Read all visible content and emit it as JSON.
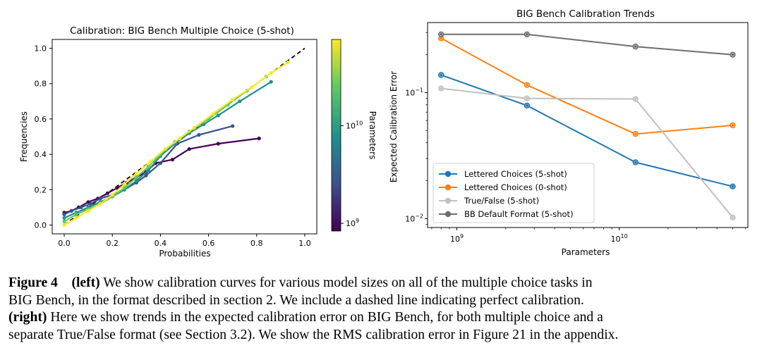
{
  "left_chart": {
    "title": "Calibration: BIG Bench Multiple Choice (5-shot)",
    "xlabel": "Probabilities",
    "ylabel": "Frequencies",
    "x_ticks": [
      "0.0",
      "0.2",
      "0.4",
      "0.6",
      "0.8",
      "1.0"
    ],
    "y_ticks": [
      "0.0",
      "0.2",
      "0.4",
      "0.6",
      "0.8",
      "1.0"
    ],
    "colorbar": {
      "label": "Parameters",
      "ticks": [
        {
          "base": "10",
          "exp": "9",
          "frac": 0.04
        },
        {
          "base": "10",
          "exp": "10",
          "frac": 0.55
        }
      ],
      "colors": [
        "#440154",
        "#3b528b",
        "#21908c",
        "#5dc963",
        "#fde725"
      ]
    }
  },
  "right_chart": {
    "title": "BIG Bench Calibration Trends",
    "xlabel": "Parameters",
    "ylabel": "Expected Calibration Error",
    "x_ticks": [
      {
        "base": "10",
        "exp": "9",
        "value": 1000000000
      },
      {
        "base": "10",
        "exp": "10",
        "value": 10000000000
      }
    ],
    "y_ticks": [
      {
        "base": "10",
        "exp": "−2",
        "value": 0.01
      },
      {
        "base": "10",
        "exp": "−1",
        "value": 0.1
      }
    ]
  },
  "chart_data": [
    {
      "type": "line",
      "title": "Calibration: BIG Bench Multiple Choice (5-shot)",
      "xlabel": "Probabilities",
      "ylabel": "Frequencies",
      "xlim": [
        -0.05,
        1.05
      ],
      "ylim": [
        -0.05,
        1.05
      ],
      "reference_line": {
        "style": "dashed",
        "color": "#000000",
        "x": [
          0.0,
          1.0
        ],
        "y": [
          0.0,
          1.0
        ]
      },
      "series": [
        {
          "color": "#440154",
          "x": [
            0.0,
            0.03,
            0.06,
            0.1,
            0.14,
            0.18,
            0.22,
            0.26,
            0.3,
            0.34,
            0.38,
            0.45,
            0.52,
            0.64,
            0.81
          ],
          "y": [
            0.07,
            0.08,
            0.1,
            0.13,
            0.15,
            0.18,
            0.21,
            0.24,
            0.27,
            0.3,
            0.35,
            0.37,
            0.43,
            0.46,
            0.49
          ]
        },
        {
          "color": "#3b528b",
          "x": [
            0.0,
            0.03,
            0.07,
            0.11,
            0.15,
            0.2,
            0.25,
            0.3,
            0.34,
            0.4,
            0.47,
            0.56,
            0.7
          ],
          "y": [
            0.06,
            0.08,
            0.1,
            0.12,
            0.15,
            0.17,
            0.2,
            0.24,
            0.28,
            0.35,
            0.46,
            0.51,
            0.56
          ]
        },
        {
          "color": "#21908c",
          "x": [
            0.0,
            0.05,
            0.1,
            0.15,
            0.2,
            0.25,
            0.3,
            0.35,
            0.4,
            0.46,
            0.52,
            0.58,
            0.64,
            0.73,
            0.86
          ],
          "y": [
            0.04,
            0.07,
            0.1,
            0.13,
            0.16,
            0.2,
            0.25,
            0.31,
            0.39,
            0.46,
            0.52,
            0.57,
            0.62,
            0.7,
            0.81
          ]
        },
        {
          "color": "#5dc963",
          "x": [
            0.0,
            0.05,
            0.1,
            0.15,
            0.2,
            0.25,
            0.3,
            0.35,
            0.4,
            0.46,
            0.52,
            0.6,
            0.68,
            0.76,
            0.84
          ],
          "y": [
            0.02,
            0.06,
            0.09,
            0.12,
            0.16,
            0.21,
            0.27,
            0.33,
            0.4,
            0.47,
            0.53,
            0.6,
            0.68,
            0.76,
            0.84
          ]
        },
        {
          "color": "#fde725",
          "x": [
            0.0,
            0.05,
            0.1,
            0.15,
            0.2,
            0.25,
            0.3,
            0.36,
            0.42,
            0.48,
            0.54,
            0.62,
            0.7,
            0.78,
            0.86,
            0.93
          ],
          "y": [
            0.0,
            0.04,
            0.08,
            0.12,
            0.17,
            0.23,
            0.29,
            0.36,
            0.43,
            0.49,
            0.55,
            0.63,
            0.71,
            0.78,
            0.86,
            0.92
          ]
        }
      ]
    },
    {
      "type": "line",
      "title": "BIG Bench Calibration Trends",
      "xlabel": "Parameters",
      "ylabel": "Expected Calibration Error",
      "x_scale": "log",
      "y_scale": "log",
      "xlim": [
        660000000,
        62000000000
      ],
      "ylim": [
        0.0085,
        0.36
      ],
      "legend_position": "lower-left",
      "x": [
        800000000,
        2700000000,
        12600000000,
        50000000000
      ],
      "series": [
        {
          "name": "Lettered Choices (5-shot)",
          "color": "#1f77b4",
          "values": [
            0.138,
            0.079,
            0.028,
            0.018
          ]
        },
        {
          "name": "Lettered Choices (0-shot)",
          "color": "#ff7f0e",
          "values": [
            0.27,
            0.115,
            0.047,
            0.055
          ]
        },
        {
          "name": "True/False (5-shot)",
          "color": "#c0c0c0",
          "values": [
            0.108,
            0.09,
            0.089,
            0.0102
          ]
        },
        {
          "name": "BB Default Format (5-shot)",
          "color": "#6e6e6e",
          "values": [
            0.29,
            0.29,
            0.232,
            0.2
          ]
        }
      ]
    }
  ],
  "caption": {
    "label": "Figure 4",
    "left_tag": "(left)",
    "text1": " We show calibration curves for various model sizes on all of the multiple choice tasks in",
    "line2": "BIG Bench, in the format described in section 2.  We include a dashed line indicating perfect calibration.",
    "right_tag": "(right)",
    "text3": " Here we show trends in the expected calibration error on BIG Bench, for both multiple choice and a",
    "line4": "separate True/False format (see Section 3.2). We show the RMS calibration error in Figure 21 in the appendix."
  }
}
